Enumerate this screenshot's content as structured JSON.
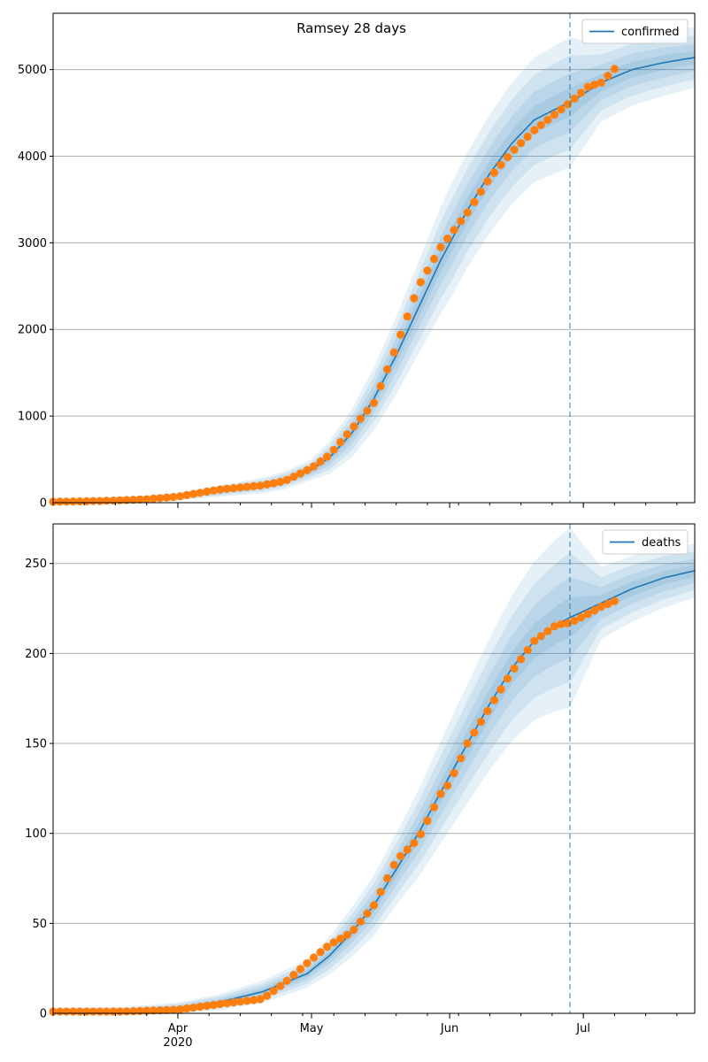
{
  "figure": {
    "title": "Ramsey 28 days"
  },
  "colors": {
    "model": "#1f77b4",
    "observed": "#ff7f0e",
    "band": "#1f77b4",
    "grid": "#b0b0b0"
  },
  "x_axis": {
    "tick_labels": [
      {
        "label": "Apr",
        "sub": "2020",
        "date": "2020-04-01"
      },
      {
        "label": "May",
        "sub": "",
        "date": "2020-05-01"
      },
      {
        "label": "Jun",
        "sub": "",
        "date": "2020-06-01"
      },
      {
        "label": "Jul",
        "sub": "",
        "date": "2020-07-01"
      }
    ]
  },
  "chart_data": [
    {
      "type": "line",
      "legend": "confirmed",
      "legend_position": "top-right",
      "grid": "horizontal",
      "xlim": [
        "2020-03-04",
        "2020-07-26"
      ],
      "ylim": [
        0,
        5650
      ],
      "yticks": [
        0,
        1000,
        2000,
        3000,
        4000,
        5000
      ],
      "forecast_start": "2020-06-28",
      "model": {
        "x": [
          "2020-03-04",
          "2020-03-20",
          "2020-04-01",
          "2020-04-10",
          "2020-04-20",
          "2020-04-25",
          "2020-05-01",
          "2020-05-05",
          "2020-05-10",
          "2020-05-15",
          "2020-05-20",
          "2020-05-25",
          "2020-05-30",
          "2020-06-05",
          "2020-06-10",
          "2020-06-15",
          "2020-06-20",
          "2020-06-25",
          "2020-06-28",
          "2020-07-05",
          "2020-07-12",
          "2020-07-19",
          "2020-07-26"
        ],
        "y": [
          10,
          30,
          70,
          130,
          200,
          260,
          380,
          520,
          800,
          1200,
          1700,
          2250,
          2800,
          3380,
          3800,
          4150,
          4420,
          4550,
          4620,
          4850,
          5000,
          5080,
          5140
        ]
      },
      "band_halfwidth": {
        "x": [
          "2020-03-04",
          "2020-04-01",
          "2020-05-01",
          "2020-05-20",
          "2020-06-01",
          "2020-06-28",
          "2020-07-05",
          "2020-07-26"
        ],
        "y": [
          20,
          40,
          120,
          450,
          650,
          750,
          450,
          350
        ]
      },
      "observed": {
        "x": [
          "2020-03-04",
          "2020-03-15",
          "2020-03-25",
          "2020-04-01",
          "2020-04-10",
          "2020-04-20",
          "2020-04-25",
          "2020-05-01",
          "2020-05-05",
          "2020-05-10",
          "2020-05-15",
          "2020-05-20",
          "2020-05-25",
          "2020-05-30",
          "2020-06-05",
          "2020-06-10",
          "2020-06-15",
          "2020-06-20",
          "2020-06-25",
          "2020-06-28",
          "2020-07-02",
          "2020-07-05",
          "2020-07-09"
        ],
        "y": [
          10,
          20,
          40,
          70,
          150,
          200,
          250,
          400,
          550,
          850,
          1150,
          1800,
          2500,
          2950,
          3350,
          3750,
          4050,
          4300,
          4500,
          4620,
          4800,
          4850,
          5060
        ]
      }
    },
    {
      "type": "line",
      "legend": "deaths",
      "legend_position": "top-right",
      "grid": "horizontal",
      "xlim": [
        "2020-03-04",
        "2020-07-26"
      ],
      "ylim": [
        0,
        272
      ],
      "yticks": [
        0,
        50,
        100,
        150,
        200,
        250
      ],
      "forecast_start": "2020-06-28",
      "model": {
        "x": [
          "2020-03-04",
          "2020-03-20",
          "2020-04-01",
          "2020-04-10",
          "2020-04-20",
          "2020-04-30",
          "2020-05-05",
          "2020-05-10",
          "2020-05-15",
          "2020-05-20",
          "2020-05-25",
          "2020-05-30",
          "2020-06-05",
          "2020-06-10",
          "2020-06-15",
          "2020-06-20",
          "2020-06-25",
          "2020-06-28",
          "2020-07-05",
          "2020-07-12",
          "2020-07-19",
          "2020-07-26"
        ],
        "y": [
          0.5,
          1,
          3,
          6,
          12,
          22,
          32,
          45,
          60,
          80,
          100,
          123,
          150,
          172,
          192,
          207,
          216,
          220,
          228,
          236,
          242,
          246
        ]
      },
      "band_halfwidth": {
        "x": [
          "2020-03-04",
          "2020-04-01",
          "2020-05-01",
          "2020-05-20",
          "2020-06-01",
          "2020-06-28",
          "2020-07-05",
          "2020-07-26"
        ],
        "y": [
          2,
          3,
          8,
          20,
          30,
          50,
          20,
          15
        ]
      },
      "observed": {
        "x": [
          "2020-03-04",
          "2020-03-20",
          "2020-04-01",
          "2020-04-10",
          "2020-04-20",
          "2020-04-25",
          "2020-05-01",
          "2020-05-05",
          "2020-05-10",
          "2020-05-15",
          "2020-05-20",
          "2020-05-25",
          "2020-05-30",
          "2020-06-01",
          "2020-06-05",
          "2020-06-10",
          "2020-06-15",
          "2020-06-20",
          "2020-06-25",
          "2020-06-28",
          "2020-07-02",
          "2020-07-05",
          "2020-07-09"
        ],
        "y": [
          1,
          1,
          2,
          5,
          8,
          17,
          30,
          38,
          45,
          60,
          85,
          97,
          122,
          128,
          150,
          170,
          190,
          207,
          216,
          217,
          222,
          226,
          230
        ]
      }
    }
  ]
}
